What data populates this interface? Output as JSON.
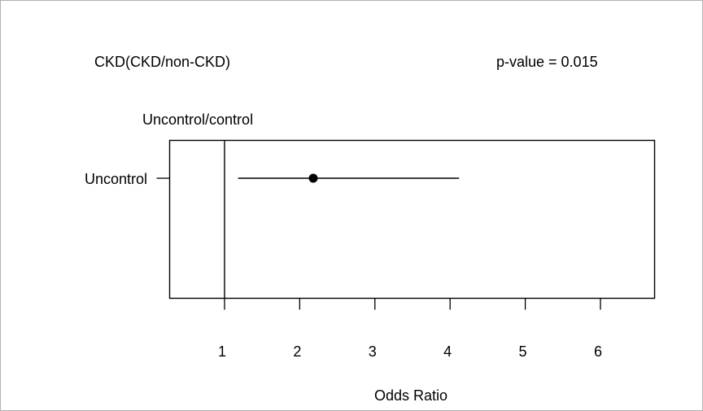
{
  "chart_data": {
    "type": "forest",
    "title": "CKD(CKD/non-CKD)",
    "annotation": "p-value = 0.015",
    "subtitle": "Uncontrol/control",
    "xlabel": "Odds Ratio",
    "xlim": [
      0.27,
      6.72
    ],
    "xticks": [
      1,
      2,
      3,
      4,
      5,
      6
    ],
    "xtick_labels": [
      "1",
      "2",
      "3",
      "4",
      "5",
      "6"
    ],
    "reference_line": 1,
    "rows": [
      {
        "label": "Uncontrol",
        "estimate": 2.18,
        "ci_lower": 1.18,
        "ci_upper": 4.12
      }
    ],
    "grid": false,
    "colors": {
      "ink": "#000000",
      "background": "#ffffff",
      "border": "#666666"
    }
  }
}
